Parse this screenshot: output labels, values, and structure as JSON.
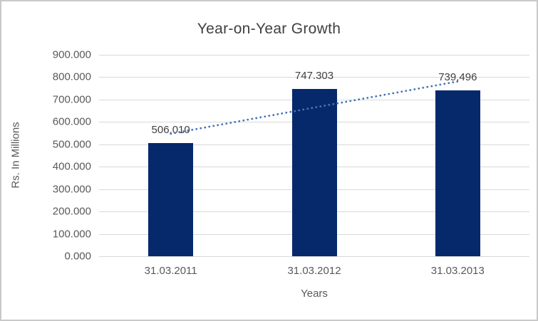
{
  "chart_data": {
    "type": "bar",
    "title": "Year-on-Year Growth",
    "xlabel": "Years",
    "ylabel": "Rs. In Millions",
    "categories": [
      "31.03.2011",
      "31.03.2012",
      "31.03.2013"
    ],
    "values": [
      506.01,
      747.303,
      739.496
    ],
    "value_labels": [
      "506,010",
      "747.303",
      "739,496"
    ],
    "ylim": [
      0,
      900
    ],
    "ytick_labels": [
      "0.000",
      "100.000",
      "200.000",
      "300.000",
      "400.000",
      "500.000",
      "600.000",
      "700.000",
      "800.000",
      "900.000"
    ],
    "grid": true,
    "legend_position": "none",
    "trendline": {
      "type": "linear",
      "style": "dotted",
      "start_value": 547.5,
      "end_value": 781.0
    },
    "colors": {
      "bar": "#06296b",
      "trendline": "#4575b8",
      "gridline": "#d9d9d9",
      "title_text": "#404040",
      "axis_text": "#595959",
      "data_label_text": "#404040",
      "border": "#c9c9c9"
    }
  }
}
